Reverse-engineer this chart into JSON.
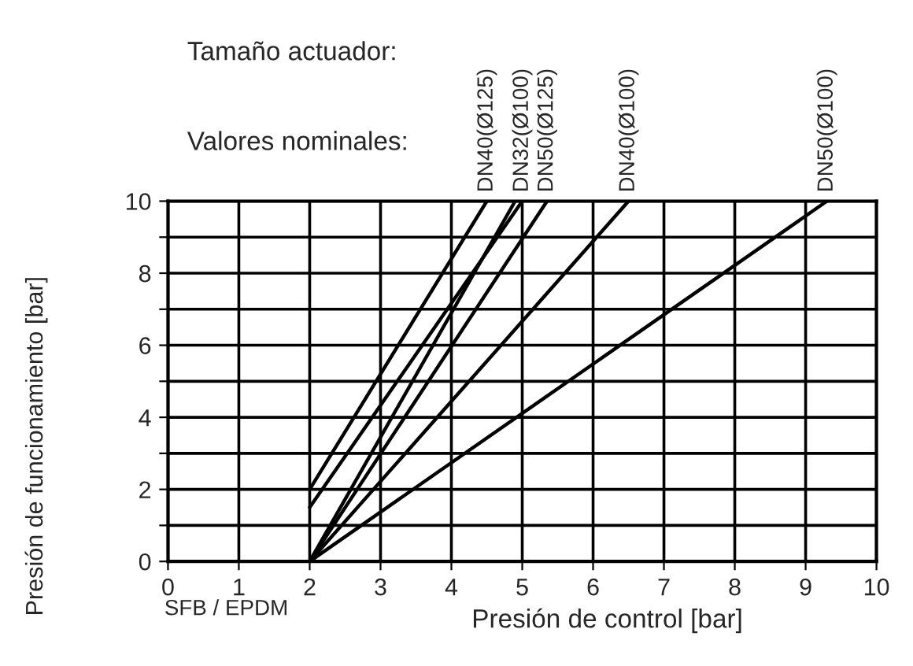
{
  "chart_data": {
    "type": "line",
    "xlabel": "Presión de control [bar]",
    "ylabel": "Presión de funcionamiento [bar]",
    "series": [
      {
        "color": "#000000",
        "x": [
          2,
          4.5
        ],
        "values": [
          2,
          10
        ]
      },
      {
        "color": "#000000",
        "x": [
          2,
          5
        ],
        "values": [
          1.5,
          10
        ]
      },
      {
        "color": "#000000",
        "x": [
          2,
          4.9
        ],
        "values": [
          0,
          10
        ]
      },
      {
        "color": "#000000",
        "x": [
          2,
          5.35
        ],
        "values": [
          0,
          10
        ]
      },
      {
        "color": "#000000",
        "x": [
          2,
          6.5
        ],
        "values": [
          0,
          10
        ]
      },
      {
        "color": "#000000",
        "x": [
          2,
          9.3
        ],
        "values": [
          0,
          10
        ]
      }
    ],
    "xlim": [
      0,
      10
    ],
    "xticks": [
      0,
      1,
      2,
      3,
      4,
      5,
      6,
      7,
      8,
      9,
      10
    ],
    "ylim": [
      0,
      10
    ],
    "yticks": [
      0,
      {
        "value": 1,
        "label": null
      },
      2,
      {
        "value": 3,
        "label": null
      },
      4,
      {
        "value": 5,
        "label": null
      },
      6,
      {
        "value": 7,
        "label": null
      },
      8,
      {
        "value": 9,
        "label": null
      },
      10
    ],
    "grid": true,
    "marker": "none",
    "line_style": "solid",
    "legend": false,
    "annotations": [
      "Tamaño actuador:",
      "Valores nominales:",
      "SFB / EPDM",
      {
        "text": "DN40(Ø125)",
        "x": 4.5,
        "y": 10
      },
      {
        "text": "DN32(Ø100)",
        "x": 5,
        "y": 10
      },
      {
        "text": "DN50(Ø125)",
        "x": 5.35,
        "y": 10
      },
      {
        "text": "DN40(Ø100)",
        "x": 6.5,
        "y": 10
      },
      {
        "text": "DN50(Ø100)",
        "x": 9.3,
        "y": 10
      }
    ]
  }
}
